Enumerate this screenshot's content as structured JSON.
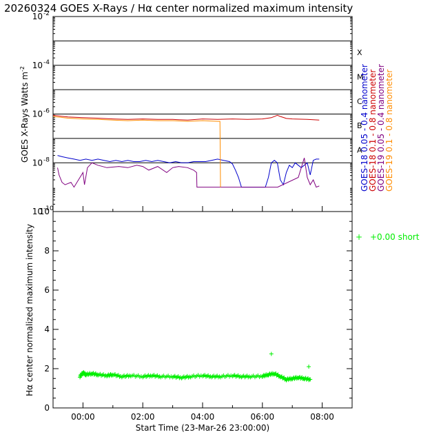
{
  "title": "20260324 GOES X-Rays / Hα center normalized maximum intensity",
  "chart_data": [
    {
      "type": "line",
      "ylabel": "GOES X-Rays Watts m",
      "ylabel_sup": "-2",
      "yscale": "log",
      "ylim_exp": [
        -10,
        -2
      ],
      "xlim_hours": [
        -1,
        9
      ],
      "y_ticks": [
        {
          "mant": "10",
          "exp": "-2",
          "e": -2
        },
        {
          "mant": "10",
          "exp": "-4",
          "e": -4
        },
        {
          "mant": "10",
          "exp": "-6",
          "e": -6
        },
        {
          "mant": "10",
          "exp": "-8",
          "e": -8
        },
        {
          "mant": "10",
          "exp": "-10",
          "e": -10
        }
      ],
      "flare_classes": [
        {
          "label": "X",
          "e": -4
        },
        {
          "label": "M",
          "e": -5
        },
        {
          "label": "C",
          "e": -6
        },
        {
          "label": "B",
          "e": -7
        },
        {
          "label": "A",
          "e": -8
        }
      ],
      "series": [
        {
          "name": "GOES-18 0.05 - 0.4 nanometer",
          "color": "#0000cc",
          "x": [
            -0.85,
            -0.7,
            -0.5,
            -0.3,
            -0.1,
            0.1,
            0.3,
            0.5,
            0.7,
            0.9,
            1.1,
            1.3,
            1.5,
            1.7,
            1.9,
            2.1,
            2.3,
            2.5,
            2.7,
            2.9,
            3.1,
            3.3,
            3.5,
            3.7,
            3.9,
            4.1,
            4.3,
            4.5,
            4.7,
            4.9,
            5.0,
            5.1,
            5.2,
            5.3,
            5.5,
            5.7,
            5.9,
            6.1,
            6.2,
            6.3,
            6.4,
            6.5,
            6.6,
            6.7,
            6.8,
            6.9,
            7.0,
            7.1,
            7.3,
            7.5,
            7.6,
            7.7,
            7.8,
            7.9
          ],
          "log_y": [
            -7.7,
            -7.75,
            -7.8,
            -7.85,
            -7.9,
            -7.85,
            -7.9,
            -7.85,
            -7.9,
            -7.95,
            -7.9,
            -7.95,
            -7.9,
            -7.95,
            -7.95,
            -7.9,
            -7.95,
            -7.9,
            -7.95,
            -8.0,
            -7.95,
            -8.0,
            -8.0,
            -7.95,
            -7.95,
            -7.95,
            -7.9,
            -7.85,
            -7.9,
            -7.95,
            -8.05,
            -8.3,
            -8.6,
            -9.0,
            -9.0,
            -9.0,
            -9.0,
            -9.0,
            -8.6,
            -8.0,
            -7.9,
            -8.0,
            -8.7,
            -8.9,
            -8.4,
            -8.1,
            -8.2,
            -8.0,
            -8.2,
            -8.0,
            -8.5,
            -7.9,
            -7.85,
            -7.85
          ]
        },
        {
          "name": "GOES-18 0.1 - 0.8 nanometer",
          "color": "#cc0000",
          "x": [
            -1.0,
            -0.5,
            0.0,
            0.5,
            1.0,
            1.5,
            2.0,
            2.5,
            3.0,
            3.5,
            4.0,
            4.5,
            5.0,
            5.5,
            6.0,
            6.3,
            6.5,
            6.6,
            6.8,
            7.0,
            7.5,
            7.9
          ],
          "log_y": [
            -6.05,
            -6.12,
            -6.15,
            -6.17,
            -6.2,
            -6.22,
            -6.2,
            -6.22,
            -6.22,
            -6.25,
            -6.2,
            -6.22,
            -6.2,
            -6.22,
            -6.2,
            -6.15,
            -6.05,
            -6.1,
            -6.18,
            -6.2,
            -6.22,
            -6.25
          ]
        },
        {
          "name": "GOES-19 0.05 - 0.4 nanometer",
          "color": "#800080",
          "x": [
            -0.85,
            -0.8,
            -0.7,
            -0.6,
            -0.4,
            -0.3,
            -0.15,
            0.0,
            0.05,
            0.15,
            0.3,
            0.5,
            0.8,
            1.2,
            1.5,
            1.8,
            2.0,
            2.2,
            2.5,
            2.8,
            3.0,
            3.2,
            3.5,
            3.7,
            3.8,
            3.81,
            4.6,
            4.61,
            5.0,
            5.5,
            6.0,
            6.5,
            6.51,
            7.2,
            7.4,
            7.5,
            7.6,
            7.7,
            7.8,
            7.9
          ],
          "log_y": [
            -8.2,
            -8.5,
            -8.8,
            -8.9,
            -8.8,
            -9.0,
            -8.7,
            -8.4,
            -8.9,
            -8.2,
            -8.0,
            -8.1,
            -8.2,
            -8.15,
            -8.2,
            -8.1,
            -8.15,
            -8.3,
            -8.15,
            -8.4,
            -8.2,
            -8.15,
            -8.2,
            -8.3,
            -8.4,
            -9.0,
            -9.0,
            -9.0,
            -9.0,
            -9.0,
            -9.0,
            -9.0,
            -9.0,
            -8.6,
            -7.8,
            -8.6,
            -8.9,
            -8.7,
            -9.0,
            -8.95
          ]
        },
        {
          "name": "GOES-19 0.1 - 0.8 nanometer",
          "color": "#ff8c00",
          "x": [
            -1.0,
            -0.5,
            0.0,
            0.5,
            1.0,
            1.5,
            2.0,
            2.5,
            3.0,
            3.5,
            4.0,
            4.5,
            4.58,
            4.59,
            4.6
          ],
          "log_y": [
            -6.1,
            -6.17,
            -6.2,
            -6.22,
            -6.25,
            -6.27,
            -6.25,
            -6.27,
            -6.27,
            -6.3,
            -6.27,
            -6.3,
            -6.3,
            -7.5,
            -9.0
          ]
        }
      ]
    },
    {
      "type": "scatter",
      "ylabel": "Hα center normalized maximum intensity",
      "xlabel": "Start Time (23-Mar-26 23:00:00)",
      "ylim": [
        0,
        10
      ],
      "xlim_hours": [
        -1,
        9
      ],
      "y_ticks": [
        "0",
        "2",
        "4",
        "6",
        "8",
        "10"
      ],
      "x_ticks": [
        {
          "label": "00:00",
          "h": 0
        },
        {
          "label": "02:00",
          "h": 2
        },
        {
          "label": "04:00",
          "h": 4
        },
        {
          "label": "06:00",
          "h": 6
        },
        {
          "label": "08:00",
          "h": 8
        }
      ],
      "legend": {
        "marker": "+",
        "text": "+0.00 short"
      },
      "color": "#00ee00",
      "series": [
        {
          "x": [
            -0.1,
            0.0,
            0.1,
            0.3,
            0.5,
            0.8,
            1.0,
            1.3,
            1.6,
            2.0,
            2.3,
            2.6,
            3.0,
            3.3,
            3.6,
            4.0,
            4.3,
            4.6,
            5.0,
            5.3,
            5.6,
            6.0,
            6.2,
            6.4,
            6.6,
            6.8,
            7.0,
            7.2,
            7.4,
            7.6
          ],
          "y": [
            1.6,
            1.8,
            1.7,
            1.75,
            1.7,
            1.65,
            1.7,
            1.6,
            1.65,
            1.6,
            1.65,
            1.6,
            1.6,
            1.55,
            1.6,
            1.65,
            1.6,
            1.6,
            1.65,
            1.6,
            1.6,
            1.62,
            1.7,
            1.75,
            1.6,
            1.45,
            1.5,
            1.55,
            1.5,
            1.45
          ]
        },
        {
          "x": [
            6.3,
            7.55
          ],
          "y": [
            2.75,
            2.1
          ]
        }
      ]
    }
  ]
}
